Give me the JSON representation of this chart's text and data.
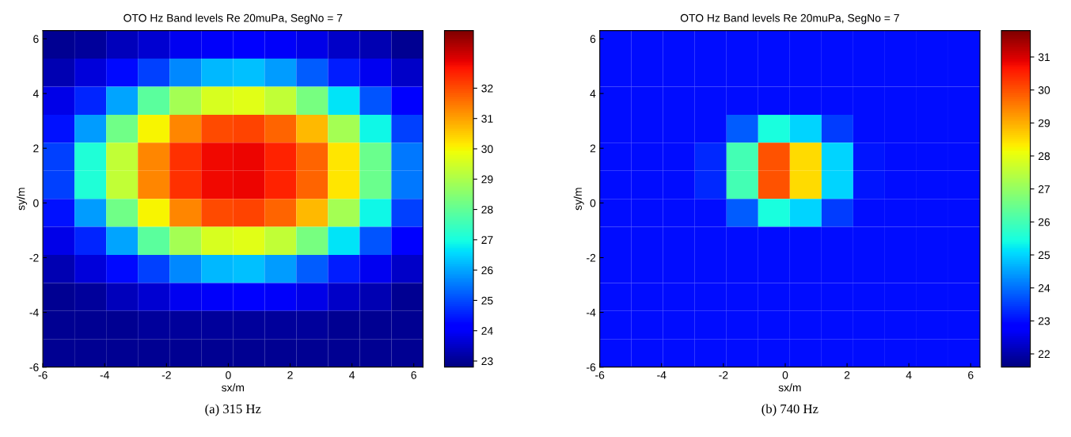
{
  "chart_data": [
    {
      "type": "heatmap",
      "title": "OTO Hz Band levels Re 20muPa, SegNo = 7",
      "xlabel": "sx/m",
      "ylabel": "sy/m",
      "annotations": [
        "(a) 315 Hz"
      ],
      "x": [
        -5.4875,
        -4.4625,
        -3.4375,
        -2.4125,
        -1.3875,
        -0.3625,
        0.6625,
        1.6875,
        2.7125,
        3.7375,
        4.7625,
        5.7875
      ],
      "y": [
        5.7875,
        4.7625,
        3.7375,
        2.7125,
        1.6875,
        0.6625,
        -0.3625,
        -1.3875,
        -2.4125,
        -3.4375,
        -4.4625,
        -5.4875
      ],
      "cells": [
        [
          23.0,
          23.1,
          23.4,
          23.6,
          23.9,
          24.0,
          24.1,
          24.0,
          23.8,
          23.5,
          23.3,
          23.0
        ],
        [
          23.3,
          23.7,
          24.3,
          24.9,
          25.7,
          26.2,
          26.3,
          25.9,
          25.2,
          24.5,
          23.9,
          23.5
        ],
        [
          23.8,
          24.6,
          26.0,
          27.9,
          28.9,
          29.6,
          29.7,
          29.3,
          28.3,
          26.7,
          25.1,
          24.1
        ],
        [
          24.4,
          25.9,
          28.2,
          30.0,
          31.3,
          32.0,
          32.1,
          31.7,
          30.7,
          28.9,
          26.9,
          24.9
        ],
        [
          24.9,
          27.1,
          29.3,
          31.3,
          32.3,
          32.8,
          32.85,
          32.5,
          31.7,
          30.2,
          28.1,
          25.5
        ],
        [
          24.9,
          27.1,
          29.3,
          31.3,
          32.3,
          32.8,
          32.85,
          32.5,
          31.7,
          30.2,
          28.1,
          25.5
        ],
        [
          24.4,
          25.9,
          28.2,
          30.0,
          31.3,
          32.0,
          32.1,
          31.7,
          30.7,
          28.9,
          26.9,
          24.9
        ],
        [
          23.8,
          24.6,
          26.0,
          27.9,
          28.9,
          29.6,
          29.7,
          29.3,
          28.3,
          26.7,
          25.1,
          24.1
        ],
        [
          23.3,
          23.7,
          24.3,
          24.9,
          25.7,
          26.2,
          26.3,
          25.9,
          25.2,
          24.5,
          23.9,
          23.5
        ],
        [
          23.0,
          23.1,
          23.4,
          23.6,
          23.9,
          24.0,
          24.1,
          24.0,
          23.8,
          23.5,
          23.3,
          23.0
        ],
        [
          23.0,
          23.0,
          23.0,
          23.1,
          23.1,
          23.1,
          23.1,
          23.1,
          23.1,
          23.0,
          23.0,
          23.0
        ],
        [
          23.0,
          23.0,
          23.0,
          23.0,
          23.0,
          23.0,
          23.0,
          23.0,
          23.0,
          23.0,
          23.0,
          23.0
        ]
      ],
      "xlim": [
        -6,
        6.3
      ],
      "ylim": [
        -6,
        6.3
      ],
      "xticks": [
        -6,
        -4,
        -2,
        0,
        2,
        4,
        6
      ],
      "yticks": [
        -6,
        -4,
        -2,
        0,
        2,
        4,
        6
      ],
      "clim": [
        22.8,
        33.9
      ],
      "cticks": [
        23,
        24,
        25,
        26,
        27,
        28,
        29,
        30,
        31,
        32
      ]
    },
    {
      "type": "heatmap",
      "title": "OTO Hz Band levels Re 20muPa, SegNo = 7",
      "xlabel": "sx/m",
      "ylabel": "sy/m",
      "annotations": [
        "(b) 740 Hz"
      ],
      "x": [
        -5.4875,
        -4.4625,
        -3.4375,
        -2.4125,
        -1.3875,
        -0.3625,
        0.6625,
        1.6875,
        2.7125,
        3.7375,
        4.7625,
        5.7875
      ],
      "y": [
        5.7875,
        4.7625,
        3.7375,
        2.7125,
        1.6875,
        0.6625,
        -0.3625,
        -1.3875,
        -2.4125,
        -3.4375,
        -4.4625,
        -5.4875
      ],
      "cells": [
        [
          23.0,
          23.0,
          23.0,
          23.0,
          23.0,
          23.0,
          23.0,
          23.0,
          23.0,
          23.0,
          23.0,
          23.0
        ],
        [
          23.0,
          23.0,
          23.0,
          23.0,
          23.0,
          23.0,
          23.0,
          23.0,
          23.0,
          23.0,
          23.0,
          23.0
        ],
        [
          23.0,
          23.0,
          23.0,
          23.0,
          23.0,
          23.0,
          23.0,
          23.0,
          23.0,
          23.0,
          23.0,
          23.0
        ],
        [
          23.0,
          23.0,
          23.0,
          23.0,
          23.8,
          25.5,
          25.0,
          23.5,
          23.0,
          23.0,
          23.0,
          23.0
        ],
        [
          23.0,
          23.0,
          23.0,
          23.3,
          26.0,
          30.0,
          28.5,
          25.0,
          23.1,
          23.0,
          23.0,
          23.0
        ],
        [
          23.0,
          23.0,
          23.0,
          23.3,
          26.0,
          30.0,
          28.5,
          25.0,
          23.1,
          23.0,
          23.0,
          23.0
        ],
        [
          23.0,
          23.0,
          23.0,
          23.0,
          23.8,
          25.5,
          25.0,
          23.5,
          23.0,
          23.0,
          23.0,
          23.0
        ],
        [
          23.0,
          23.0,
          23.0,
          23.0,
          23.0,
          23.0,
          23.0,
          23.0,
          23.0,
          23.0,
          23.0,
          23.0
        ],
        [
          23.0,
          23.0,
          23.0,
          23.0,
          23.0,
          23.0,
          23.0,
          23.0,
          23.0,
          23.0,
          23.0,
          23.0
        ],
        [
          23.0,
          23.0,
          23.0,
          23.0,
          23.0,
          23.0,
          23.0,
          23.0,
          23.0,
          23.0,
          23.0,
          23.0
        ],
        [
          23.0,
          23.0,
          23.0,
          23.0,
          23.0,
          23.0,
          23.0,
          23.0,
          23.0,
          23.0,
          23.0,
          23.0
        ],
        [
          23.0,
          23.0,
          23.0,
          23.0,
          23.0,
          23.0,
          23.0,
          23.0,
          23.0,
          23.0,
          23.0,
          23.0
        ]
      ],
      "xlim": [
        -6,
        6.3
      ],
      "ylim": [
        -6,
        6.3
      ],
      "xticks": [
        -6,
        -4,
        -2,
        0,
        2,
        4,
        6
      ],
      "yticks": [
        -6,
        -4,
        -2,
        0,
        2,
        4,
        6
      ],
      "clim": [
        21.6,
        31.8
      ],
      "cticks": [
        22,
        23,
        24,
        25,
        26,
        27,
        28,
        29,
        30,
        31
      ]
    }
  ]
}
